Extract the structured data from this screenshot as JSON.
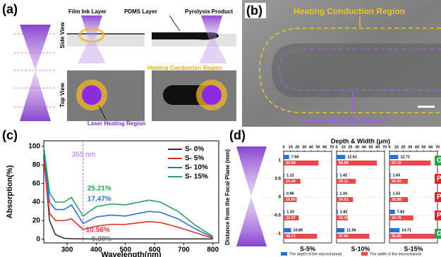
{
  "panel_a": {
    "label": "(a)",
    "film_ink_layer": "Film Ink Layer",
    "pdms_layer": "PDMS Layer",
    "pyrolysis_product": "Pyrolysis Product",
    "side_view": "Side View",
    "top_view": "Top View",
    "heating_conduction_region": "Heating Conduction Region",
    "laser_heating_region": "Laser Heating Region"
  },
  "panel_b": {
    "label": "(b)",
    "heating_conduction_region": "Heating Conduction Region",
    "laser_heating_region": "Laser Heating Region"
  },
  "panel_c_label": "(c)",
  "panel_d_label": "(d)",
  "chart_data": [
    {
      "type": "line",
      "xlabel": "Wavelength(nm)",
      "ylabel": "Absorption(%)",
      "x": [
        220,
        240,
        260,
        290,
        315,
        355,
        400,
        450,
        500,
        580,
        620,
        680,
        740,
        800
      ],
      "series": [
        {
          "name": "S- 0%",
          "color": "#333333",
          "values": [
            90,
            20,
            5,
            1,
            0.5,
            0.4,
            0.3,
            0.3,
            0.3,
            0.3,
            0.3,
            0.3,
            0.3,
            0.3
          ]
        },
        {
          "name": "S- 5%",
          "color": "#e0302c",
          "values": [
            85,
            28,
            20,
            20,
            22,
            10.5,
            14,
            16,
            16,
            19,
            18,
            13,
            7,
            1
          ]
        },
        {
          "name": "S- 10%",
          "color": "#2a6fd6",
          "values": [
            95,
            40,
            32,
            32,
            37,
            17,
            24,
            26,
            25,
            30,
            29,
            22,
            11,
            2
          ]
        },
        {
          "name": "S- 15%",
          "color": "#2aa05a",
          "values": [
            100,
            50,
            40,
            40,
            45,
            25,
            35,
            38,
            37,
            42,
            40,
            30,
            15,
            3
          ]
        }
      ],
      "xlim": [
        220,
        820
      ],
      "ylim": [
        -4,
        106
      ],
      "xticks": [
        300,
        400,
        500,
        600,
        700,
        800
      ],
      "yticks": [
        0,
        20,
        40,
        60,
        80,
        100
      ],
      "legend": "upper right",
      "marker_line": {
        "x": 355,
        "label": "355 nm",
        "color": "#b36ae2"
      },
      "annotations": [
        {
          "text": "25.21%",
          "color": "#2aa05a"
        },
        {
          "text": "17.47%",
          "color": "#2a6fd6"
        },
        {
          "text": "10.56%",
          "color": "#e0302c"
        },
        {
          "text": "0.38%",
          "color": "#777777"
        }
      ]
    },
    {
      "type": "barh",
      "title": "Depth & Width (μm)",
      "ylabel": "Distance from the Focal Plane (mm)",
      "categories": [
        "1",
        "0.5",
        "0",
        "-0.5",
        "-1"
      ],
      "xlim": [
        0,
        70
      ],
      "xticks": [
        0,
        10,
        20,
        30,
        40,
        50,
        60,
        70
      ],
      "series": [
        {
          "name": "The depth of the microchannel",
          "color": "#2a6fd6"
        },
        {
          "name": "The width of the microchannel",
          "color": "#e8474c"
        }
      ],
      "subplots": [
        {
          "title": "S-5%",
          "depth": [
            7.96,
            1.12,
            0.96,
            1.33,
            10.85
          ],
          "width": [
            50.88,
            24.46,
            19.0,
            22.07,
            48.72
          ],
          "width_labels": [
            "50.88",
            "24.46",
            "19.00",
            "22.07",
            "48.72"
          ]
        },
        {
          "title": "S-10%",
          "depth": [
            12.61,
            1.42,
            1.33,
            1.82,
            11.56
          ],
          "width": [
            58.88,
            28.11,
            24.01,
            16.36,
            47.92
          ],
          "width_labels": [
            "58.88",
            "28.11",
            "24.01",
            "16.36",
            "47.92"
          ]
        },
        {
          "title": "S-15%",
          "depth": [
            12.71,
            1.65,
            1.53,
            7.82,
            14.71
          ],
          "width": [
            60.1,
            26.8,
            26.88,
            34.76,
            66.8
          ],
          "width_labels": [
            "60.10",
            "26.80",
            "26.88",
            "34.76",
            "66.80"
          ]
        }
      ],
      "side_labels": [
        {
          "text": "G",
          "color": "#2aa14a"
        },
        {
          "text": "P",
          "color": "#d8262b"
        },
        {
          "text": "P",
          "color": "#d8262b"
        },
        {
          "text": "P",
          "color": "#d8262b"
        },
        {
          "text": "G",
          "color": "#2aa14a"
        }
      ]
    }
  ]
}
